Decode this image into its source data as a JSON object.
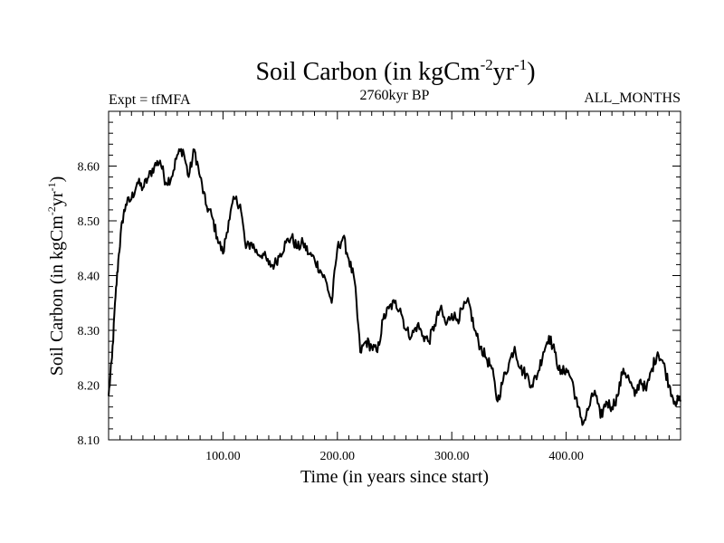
{
  "chart_data": {
    "type": "line",
    "title": {
      "base": "Soil Carbon (in kgCm",
      "sup1": "-2",
      "mid": "yr",
      "sup2": "-1",
      "end": ")"
    },
    "ylabel": {
      "base": "Soil Carbon (in kgCm",
      "sup1": "-2",
      "mid": "yr",
      "sup2": "-1",
      "end": ")"
    },
    "subtitle_left": "Expt = tfMFA",
    "subtitle_center": "2760kyr BP",
    "subtitle_right": "ALL_MONTHS",
    "xlabel": "Time (in years since start)",
    "xlim": [
      0,
      500
    ],
    "ylim": [
      8.1,
      8.7
    ],
    "xticks": [
      100,
      200,
      300,
      400
    ],
    "xtick_labels": [
      "100.00",
      "200.00",
      "300.00",
      "400.00"
    ],
    "yticks": [
      8.1,
      8.2,
      8.3,
      8.4,
      8.5,
      8.6
    ],
    "ytick_labels": [
      "8.10",
      "8.20",
      "8.30",
      "8.40",
      "8.50",
      "8.60"
    ],
    "series": [
      {
        "name": "Soil Carbon",
        "color": "#000000",
        "x": [
          0,
          3,
          6,
          9,
          12,
          15,
          20,
          25,
          30,
          35,
          40,
          45,
          50,
          55,
          60,
          65,
          70,
          75,
          80,
          85,
          90,
          95,
          100,
          105,
          110,
          115,
          120,
          125,
          130,
          135,
          140,
          145,
          150,
          155,
          160,
          165,
          170,
          175,
          180,
          185,
          190,
          195,
          200,
          205,
          210,
          215,
          220,
          225,
          230,
          235,
          240,
          245,
          250,
          255,
          260,
          265,
          270,
          275,
          280,
          285,
          290,
          295,
          300,
          305,
          310,
          315,
          320,
          325,
          330,
          335,
          340,
          345,
          350,
          355,
          360,
          365,
          370,
          375,
          380,
          385,
          390,
          395,
          400,
          405,
          410,
          415,
          420,
          425,
          430,
          435,
          440,
          445,
          450,
          455,
          460,
          465,
          470,
          475,
          480,
          485,
          490,
          495,
          500
        ],
        "y": [
          8.18,
          8.25,
          8.36,
          8.44,
          8.5,
          8.53,
          8.54,
          8.57,
          8.56,
          8.58,
          8.6,
          8.61,
          8.57,
          8.58,
          8.62,
          8.63,
          8.58,
          8.63,
          8.58,
          8.53,
          8.51,
          8.47,
          8.44,
          8.5,
          8.54,
          8.53,
          8.45,
          8.46,
          8.44,
          8.44,
          8.42,
          8.42,
          8.44,
          8.46,
          8.47,
          8.45,
          8.46,
          8.44,
          8.43,
          8.41,
          8.39,
          8.35,
          8.45,
          8.47,
          8.43,
          8.39,
          8.26,
          8.28,
          8.27,
          8.26,
          8.32,
          8.34,
          8.35,
          8.34,
          8.3,
          8.29,
          8.31,
          8.29,
          8.28,
          8.31,
          8.34,
          8.31,
          8.33,
          8.32,
          8.34,
          8.35,
          8.3,
          8.27,
          8.25,
          8.23,
          8.17,
          8.21,
          8.24,
          8.27,
          8.23,
          8.22,
          8.2,
          8.22,
          8.26,
          8.29,
          8.26,
          8.22,
          8.23,
          8.21,
          8.16,
          8.13,
          8.16,
          8.19,
          8.14,
          8.17,
          8.16,
          8.18,
          8.23,
          8.21,
          8.18,
          8.21,
          8.19,
          8.23,
          8.26,
          8.24,
          8.2,
          8.17,
          8.17
        ]
      }
    ]
  }
}
